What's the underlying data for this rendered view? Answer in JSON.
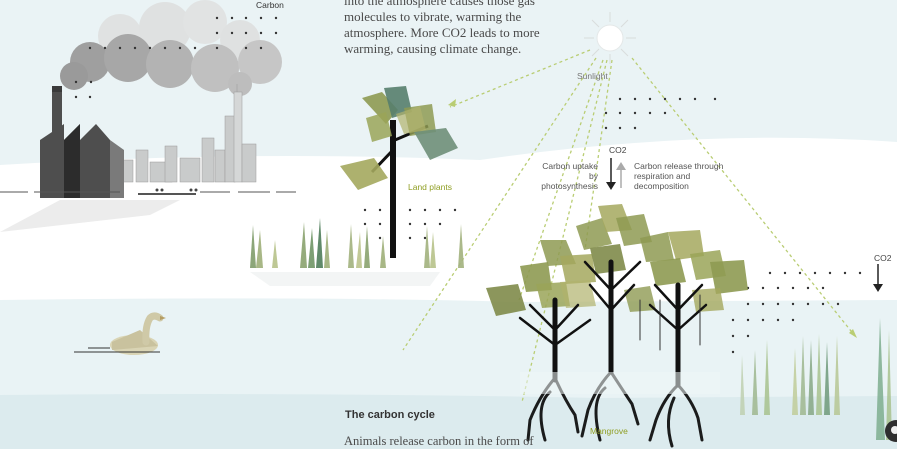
{
  "intro_text": "into the atmosphere causes those gas molecules to vibrate, warming the atmosphere. More CO2 leads to more warming, causing climate change.",
  "labels": {
    "carbon": "Carbon",
    "sunlight": "Sunlight",
    "land_plants": "Land plants",
    "co2_center": "CO2",
    "co2_right": "CO2",
    "uptake": "Carbon uptake by photosynthesis",
    "release": "Carbon release through respiration and decomposition",
    "mangrove": "Mangrove"
  },
  "section_heading": "The carbon cycle",
  "section_body": "Animals release carbon in the form of",
  "colors": {
    "leaf_olive": "#8e9a52",
    "leaf_teal": "#567e6d",
    "trunk": "#111111",
    "sky": "#eef5f6",
    "water": "#e2eef0",
    "ray": "#b9cd73"
  }
}
